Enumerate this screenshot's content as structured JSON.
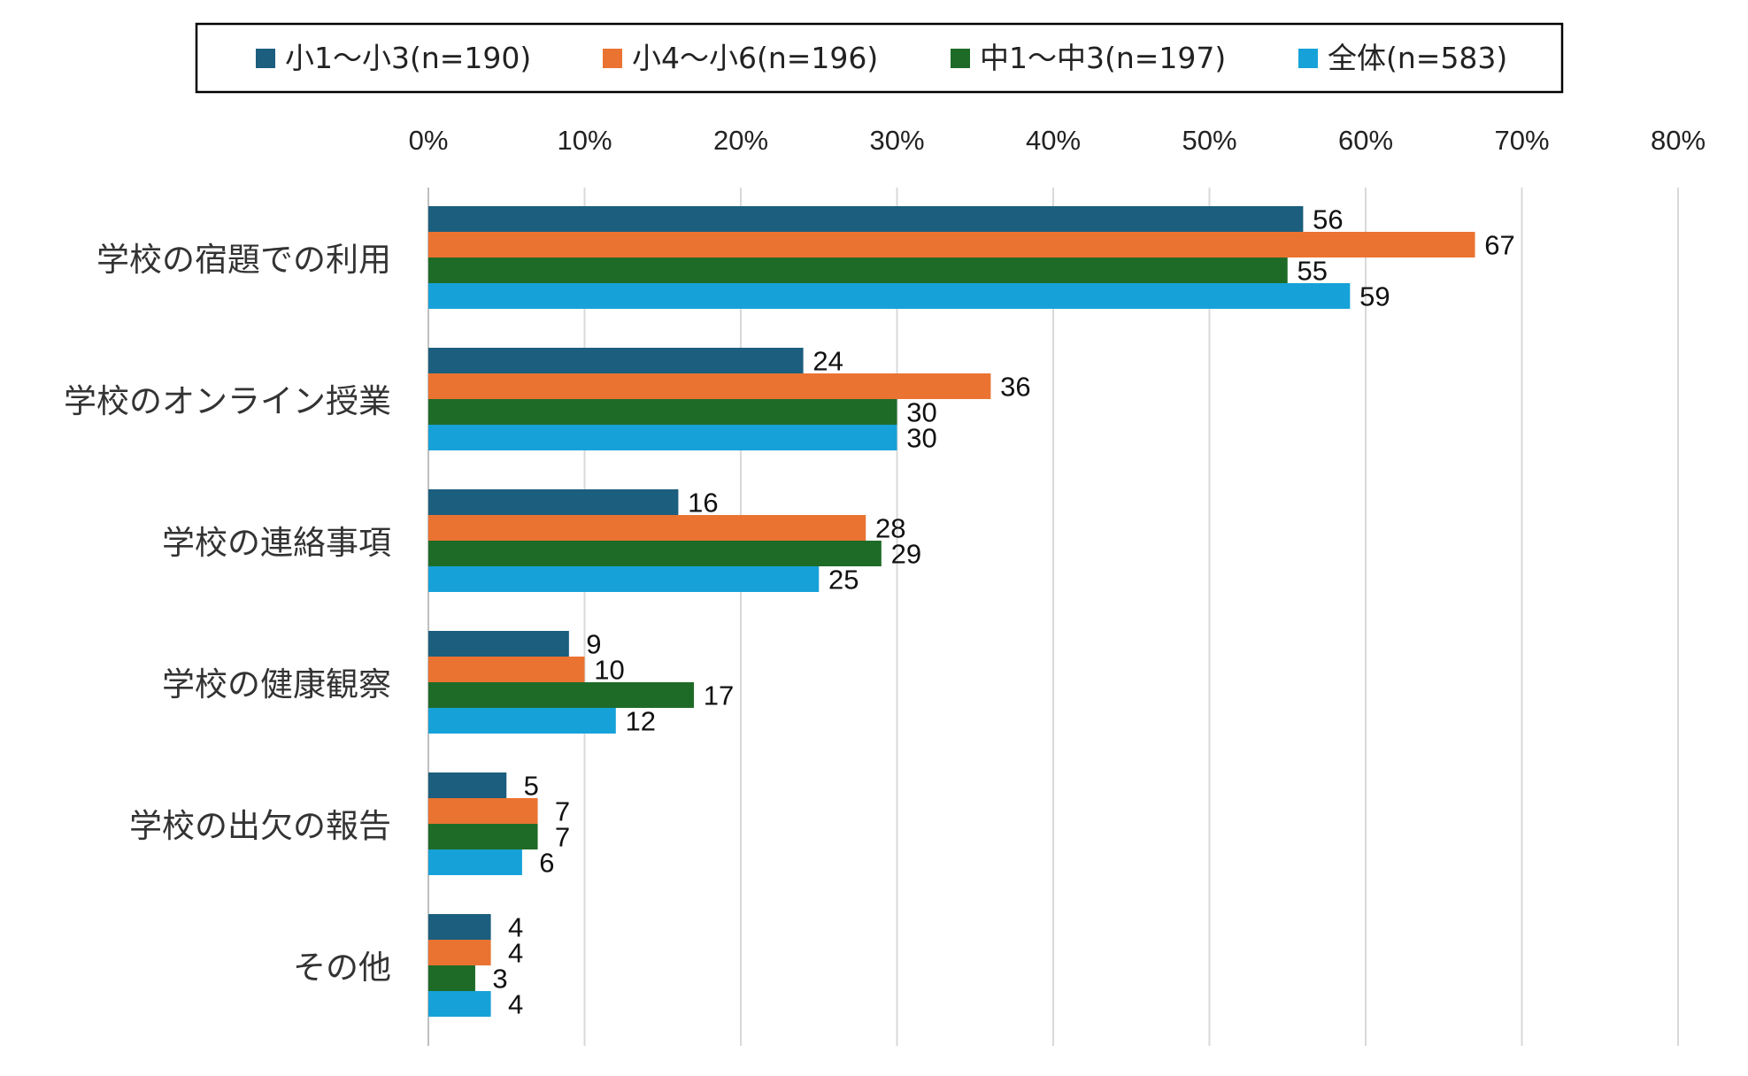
{
  "chart_data": {
    "type": "bar",
    "orientation": "horizontal",
    "categories": [
      "学校の宿題での利用",
      "学校のオンライン授業",
      "学校の連絡事項",
      "学校の健康観察",
      "学校の出欠の報告",
      "その他"
    ],
    "series": [
      {
        "name": "小1～小3(n=190)",
        "color": "#1b5e7e",
        "values": [
          56,
          24,
          16,
          9,
          5,
          4
        ]
      },
      {
        "name": "小4～小6(n=196)",
        "color": "#ea7331",
        "values": [
          67,
          36,
          28,
          10,
          7,
          4
        ]
      },
      {
        "name": "中1～中3(n=197)",
        "color": "#1e6b28",
        "values": [
          55,
          30,
          29,
          17,
          7,
          3
        ]
      },
      {
        "name": "全体(n=583)",
        "color": "#16a2d8",
        "values": [
          59,
          30,
          25,
          12,
          6,
          4
        ]
      }
    ],
    "x_ticks": [
      "0%",
      "10%",
      "20%",
      "30%",
      "40%",
      "50%",
      "60%",
      "70%",
      "80%"
    ],
    "xlim": [
      0,
      80
    ],
    "grid": true,
    "legend_position": "top",
    "title": "",
    "xlabel": "",
    "ylabel": ""
  }
}
